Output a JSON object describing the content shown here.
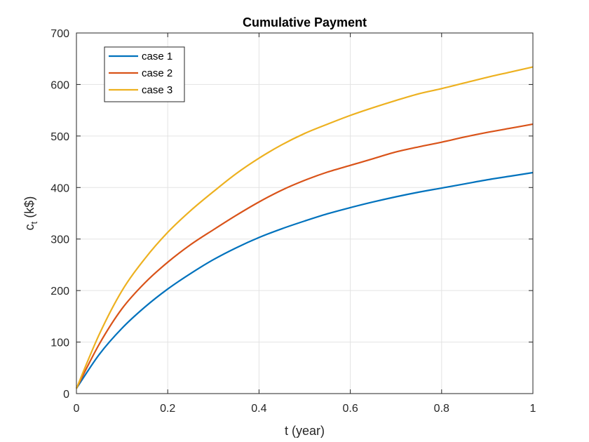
{
  "chart_data": {
    "type": "line",
    "title": "Cumulative Payment",
    "xlabel": "t (year)",
    "ylabel_main": "c",
    "ylabel_sub": "t",
    "ylabel_rest": " (k$)",
    "xlim": [
      0,
      1
    ],
    "ylim": [
      0,
      700
    ],
    "xticks": [
      0,
      0.2,
      0.4,
      0.6,
      0.8,
      1
    ],
    "xtick_labels": [
      "0",
      "0.2",
      "0.4",
      "0.6",
      "0.8",
      "1"
    ],
    "yticks": [
      0,
      100,
      200,
      300,
      400,
      500,
      600,
      700
    ],
    "ytick_labels": [
      "0",
      "100",
      "200",
      "300",
      "400",
      "500",
      "600",
      "700"
    ],
    "grid": true,
    "legend_position": "top-left",
    "x": [
      0,
      0.05,
      0.1,
      0.15,
      0.2,
      0.25,
      0.3,
      0.35,
      0.4,
      0.45,
      0.5,
      0.55,
      0.6,
      0.65,
      0.7,
      0.75,
      0.8,
      0.85,
      0.9,
      0.95,
      1.0
    ],
    "series": [
      {
        "name": "case 1",
        "color": "#0072BD",
        "values": [
          10,
          76,
          127,
          168,
          203,
          233,
          260,
          283,
          303,
          320,
          335,
          349,
          361,
          372,
          382,
          391,
          399,
          407,
          415,
          422,
          429
        ]
      },
      {
        "name": "case 2",
        "color": "#D95319",
        "values": [
          10,
          96,
          165,
          215,
          255,
          289,
          318,
          346,
          372,
          395,
          414,
          430,
          443,
          456,
          469,
          479,
          488,
          498,
          507,
          515,
          523
        ]
      },
      {
        "name": "case 3",
        "color": "#EDB120",
        "values": [
          10,
          115,
          200,
          262,
          313,
          355,
          392,
          427,
          457,
          483,
          505,
          523,
          540,
          555,
          569,
          582,
          592,
          603,
          614,
          624,
          634
        ]
      }
    ]
  }
}
